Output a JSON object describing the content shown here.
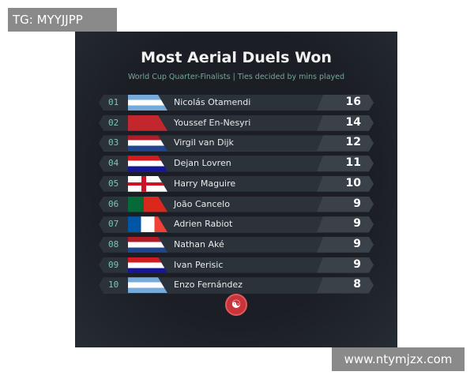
{
  "watermark_top": "TG: MYYJJPP",
  "watermark_bottom": "www.ntymjzx.com",
  "title": "Most Aerial Duels Won",
  "subtitle": "World Cup Quarter-Finalists | Ties decided by mins played",
  "rows": [
    {
      "rank": "01",
      "name": "Nicolás Otamendi",
      "value": "16",
      "flag": "argentina"
    },
    {
      "rank": "02",
      "name": "Youssef En-Nesyri",
      "value": "14",
      "flag": "morocco"
    },
    {
      "rank": "03",
      "name": "Virgil van Dijk",
      "value": "12",
      "flag": "netherlands"
    },
    {
      "rank": "04",
      "name": "Dejan Lovren",
      "value": "11",
      "flag": "croatia"
    },
    {
      "rank": "05",
      "name": "Harry Maguire",
      "value": "10",
      "flag": "england"
    },
    {
      "rank": "06",
      "name": "João Cancelo",
      "value": "9",
      "flag": "portugal"
    },
    {
      "rank": "07",
      "name": "Adrien Rabiot",
      "value": "9",
      "flag": "france"
    },
    {
      "rank": "08",
      "name": "Nathan Aké",
      "value": "9",
      "flag": "netherlands"
    },
    {
      "rank": "09",
      "name": "Ivan Perisic",
      "value": "9",
      "flag": "croatia"
    },
    {
      "rank": "10",
      "name": "Enzo Fernández",
      "value": "8",
      "flag": "argentina"
    }
  ],
  "colors": {
    "accent": "#7fc4b0",
    "background": "#1b1f25",
    "logo": "#c8343a"
  }
}
